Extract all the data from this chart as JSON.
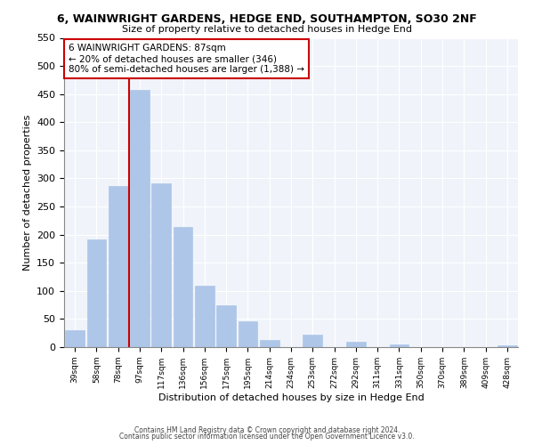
{
  "title_line1": "6, WAINWRIGHT GARDENS, HEDGE END, SOUTHAMPTON, SO30 2NF",
  "title_line2": "Size of property relative to detached houses in Hedge End",
  "xlabel": "Distribution of detached houses by size in Hedge End",
  "ylabel": "Number of detached properties",
  "bar_labels": [
    "39sqm",
    "58sqm",
    "78sqm",
    "97sqm",
    "117sqm",
    "136sqm",
    "156sqm",
    "175sqm",
    "195sqm",
    "214sqm",
    "234sqm",
    "253sqm",
    "272sqm",
    "292sqm",
    "311sqm",
    "331sqm",
    "350sqm",
    "370sqm",
    "389sqm",
    "409sqm",
    "428sqm"
  ],
  "bar_values": [
    30,
    192,
    287,
    458,
    291,
    213,
    110,
    74,
    46,
    13,
    0,
    22,
    0,
    10,
    0,
    5,
    0,
    0,
    0,
    0,
    3
  ],
  "bar_color": "#aec6e8",
  "bar_edge_color": "#aec6e8",
  "vline_color": "#cc0000",
  "annotation_title": "6 WAINWRIGHT GARDENS: 87sqm",
  "annotation_line1": "← 20% of detached houses are smaller (346)",
  "annotation_line2": "80% of semi-detached houses are larger (1,388) →",
  "annotation_box_color": "#cc0000",
  "ylim": [
    0,
    550
  ],
  "yticks": [
    0,
    50,
    100,
    150,
    200,
    250,
    300,
    350,
    400,
    450,
    500,
    550
  ],
  "footer_line1": "Contains HM Land Registry data © Crown copyright and database right 2024.",
  "footer_line2": "Contains public sector information licensed under the Open Government Licence v3.0.",
  "bg_color": "#f0f4fa"
}
